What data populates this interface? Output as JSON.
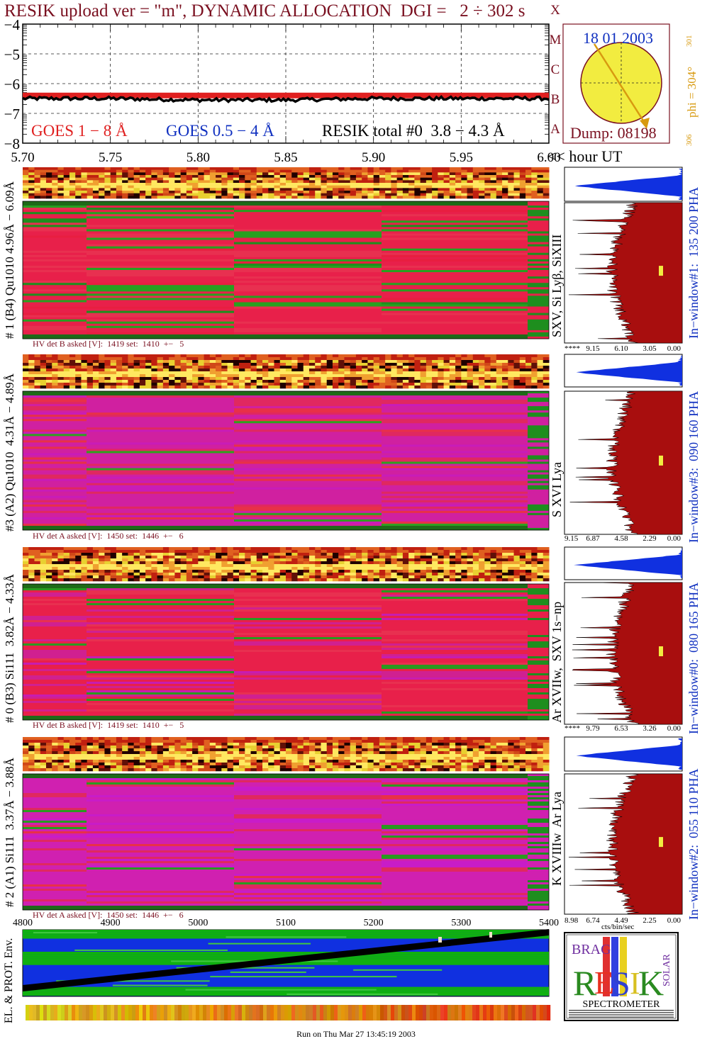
{
  "header": {
    "title": "RESIK upload ver = \"m\", DYNAMIC ALLOCATION  DGI =   2 ÷ 302 s"
  },
  "colors": {
    "title": "#7a1020",
    "goes_long": "#e02020",
    "goes_short": "#1030c0",
    "resik_total": "#000000",
    "spectrum_red": "#a80e0e",
    "pha_blue": "#1030e0",
    "sun_fill": "#f2ec40",
    "sun_outline": "#7a1020",
    "arrow": "#d89a10",
    "green": "#10b010",
    "blue_band": "#1030e0"
  },
  "goes_panel": {
    "y_ticks": [
      "−4",
      "−5",
      "−6",
      "−7",
      "−8"
    ],
    "x_ticks": [
      "5.70",
      "5.75",
      "5.80",
      "5.85",
      "5.90",
      "5.95",
      "6.00"
    ],
    "x_unit_label": "<< hour UT",
    "legend": {
      "goes_long": "GOES 1 − 8 Å",
      "goes_short": "GOES 0.5 − 4 Å",
      "resik_total": "RESIK total #0  3.8 − 4.3 Å"
    },
    "class_letters": [
      "X",
      "M",
      "C",
      "B",
      "A"
    ]
  },
  "chart_data": [
    {
      "type": "line",
      "title": "",
      "x_range": [
        5.7,
        6.0
      ],
      "y_range": [
        -8,
        -4
      ],
      "series": [
        {
          "name": "GOES 1 − 8 Å",
          "x": [
            5.7,
            5.75,
            5.8,
            5.85,
            5.9,
            5.95,
            6.0
          ],
          "y": [
            -6.4,
            -6.4,
            -6.4,
            -6.4,
            -6.4,
            -6.4,
            -6.4
          ]
        },
        {
          "name": "RESIK total #0  3.8 − 4.3 Å",
          "x": [
            5.7,
            5.75,
            5.8,
            5.85,
            5.9,
            5.95,
            6.0
          ],
          "y": [
            -6.5,
            -6.5,
            -6.55,
            -6.55,
            -6.5,
            -6.5,
            -6.5
          ]
        }
      ]
    }
  ],
  "sun_panel": {
    "date": "18 01 2003",
    "dump": "Dump: 08198",
    "phi_label": "phi = 304°",
    "tick_301": "301",
    "tick_306": "306"
  },
  "channels": [
    {
      "id": "ch1",
      "side_label": "# 1 (B4) Qu1010 4.96Å − 6.09Å",
      "lines_label": "SXV, Si Lyβ, SiXIII",
      "window_label": "In−window#1:  135 200 PHA",
      "hv_text": "HV det B asked [V]:  1419 set:  1410  +−   5",
      "axis_ticks": [
        "****",
        "9.15",
        "6.10",
        "3.05",
        "0.00"
      ],
      "palette": [
        "#e8204a",
        "#e83050",
        "#28a020",
        "#e81e40",
        "#1e8e1e"
      ]
    },
    {
      "id": "ch3",
      "side_label": "#3 (A2) Qu1010  4.31Å − 4.89Å",
      "lines_label": "S XVI Lya",
      "window_label": "In−window#3:  090 160 PHA",
      "hv_text": "HV det A asked [V]:  1450 set:  1446  +−   6",
      "axis_ticks": [
        "9.15",
        "6.87",
        "4.58",
        "2.29",
        "0.00"
      ],
      "palette": [
        "#d020a0",
        "#e02860",
        "#c81cb8",
        "#e83048",
        "#30a020"
      ]
    },
    {
      "id": "ch0",
      "side_label": "# 0 (B3) Si111  3.82Å − 4.33Å",
      "lines_label": "Ar XVIIw,  SXV 1s−np",
      "window_label": "In−window#0:  080 165 PHA",
      "hv_text": "HV det B asked [V]:  1419 set:  1410  +−   5",
      "axis_ticks": [
        "****",
        "9.79",
        "6.53",
        "3.26",
        "0.00"
      ],
      "palette": [
        "#e8204a",
        "#d02090",
        "#e83050",
        "#2a9a20",
        "#c81cb0"
      ]
    },
    {
      "id": "ch2",
      "side_label": "# 2 (A1) Si111  3.37Å − 3.88Å",
      "lines_label": "K XVIIIw  Ar Lya",
      "window_label": "In−window#2:  055 110 PHA",
      "hv_text": "HV det A asked [V]:  1450 set:  1446  +−   6",
      "axis_ticks": [
        "8.98",
        "6.74",
        "4.49",
        "2.25",
        "0.00"
      ],
      "axis_unit": "cts/bin/sec",
      "palette": [
        "#d020b0",
        "#e02860",
        "#c81cc8",
        "#2a9a20",
        "#e83048"
      ]
    }
  ],
  "bottom_panel": {
    "x_ticks": [
      "4800",
      "4900",
      "5000",
      "5100",
      "5200",
      "5300",
      "5400"
    ],
    "side_label": "EL. & PROT. Env."
  },
  "logo": {
    "letters": "RESIK",
    "small_left": "BRAG",
    "small_right": "SOLAR",
    "spectrometer": "SPECTROMETER"
  },
  "footer": {
    "run_text": "Run on Thu Mar 27 13:45:19 2003"
  }
}
